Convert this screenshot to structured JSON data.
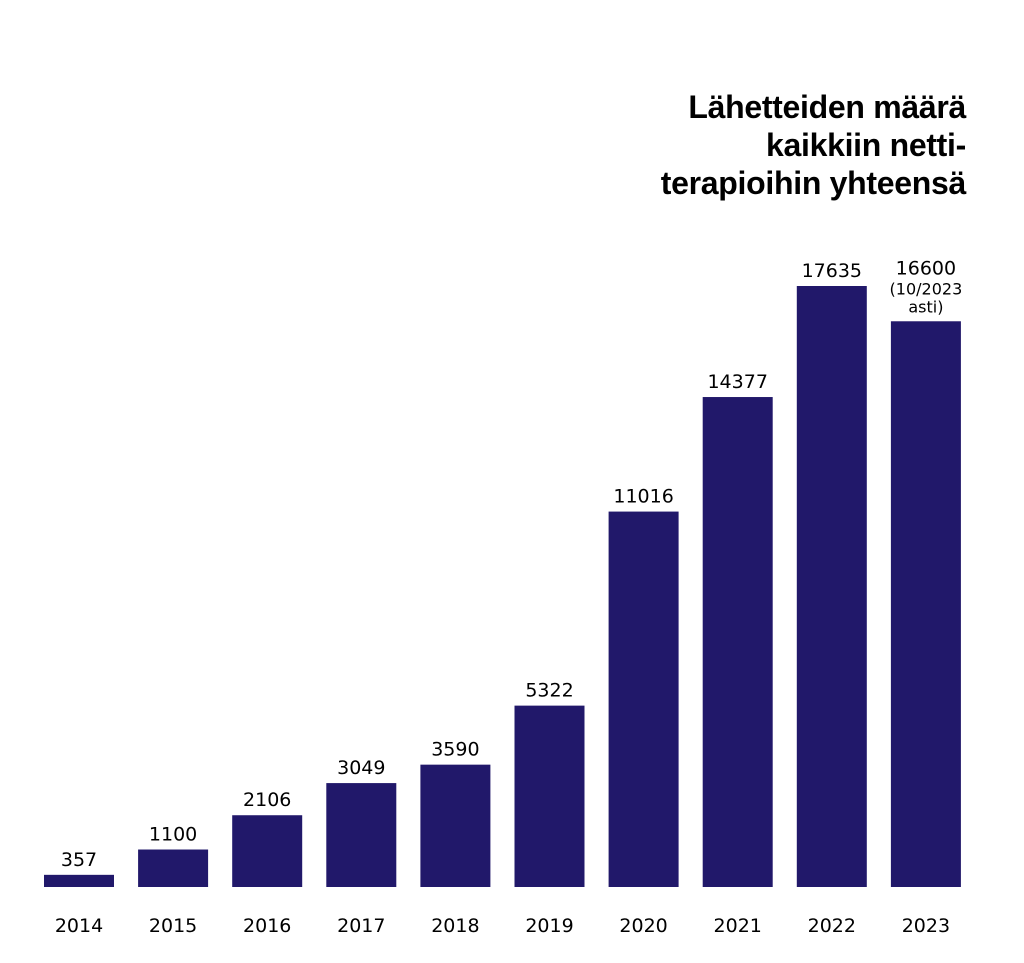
{
  "chart_data": {
    "type": "bar",
    "title_lines": [
      "Lähetteiden määrä",
      "kaikkiin netti-",
      "terapioihin yhteensä"
    ],
    "categories": [
      "2014",
      "2015",
      "2016",
      "2017",
      "2018",
      "2019",
      "2020",
      "2021",
      "2022",
      "2023"
    ],
    "values": [
      357,
      1100,
      2106,
      3049,
      3590,
      5322,
      11016,
      14377,
      17635,
      16600
    ],
    "data_labels": [
      "357",
      "1100",
      "2106",
      "3049",
      "3590",
      "5322",
      "11016",
      "14377",
      "17635",
      "16600"
    ],
    "annotations": [
      {
        "category": "2023",
        "lines": [
          "(10/2023",
          "asti)"
        ]
      }
    ],
    "xlabel": "",
    "ylabel": "",
    "ylim": [
      0,
      18000
    ],
    "grid": false,
    "bar_color": "#21186a"
  }
}
